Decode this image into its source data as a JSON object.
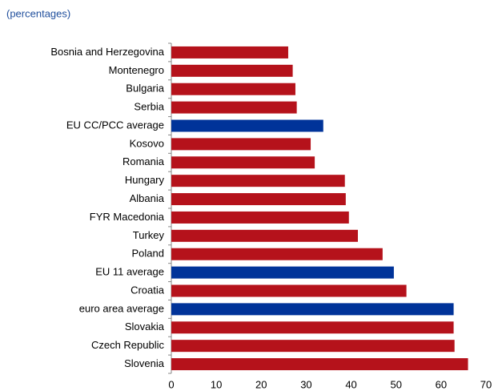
{
  "chart_data": {
    "type": "hbar",
    "subtitle": "(percentages)",
    "categories": [
      "Bosnia and Herzegovina",
      "Montenegro",
      "Bulgaria",
      "Serbia",
      "EU CC/PCC average",
      "Kosovo",
      "Romania",
      "Hungary",
      "Albania",
      "FYR Macedonia",
      "Turkey",
      "Poland",
      "EU 11 average",
      "Croatia",
      "euro area average",
      "Slovakia",
      "Czech Republic",
      "Slovenia"
    ],
    "values": [
      26.0,
      27.0,
      27.6,
      27.9,
      33.8,
      31.0,
      31.9,
      38.6,
      38.8,
      39.5,
      41.5,
      47.0,
      49.5,
      52.3,
      62.8,
      62.8,
      63.0,
      66.0
    ],
    "colors": [
      "#b5121b",
      "#b5121b",
      "#b5121b",
      "#b5121b",
      "#003399",
      "#b5121b",
      "#b5121b",
      "#b5121b",
      "#b5121b",
      "#b5121b",
      "#b5121b",
      "#b5121b",
      "#003399",
      "#b5121b",
      "#003399",
      "#b5121b",
      "#b5121b",
      "#b5121b"
    ],
    "xlim": [
      0,
      70
    ],
    "xticks": [
      0,
      10,
      20,
      30,
      40,
      50,
      60,
      70
    ]
  }
}
